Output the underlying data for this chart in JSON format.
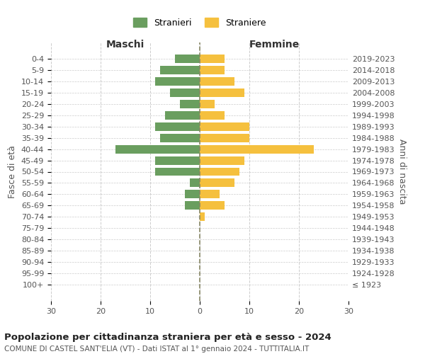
{
  "age_groups": [
    "100+",
    "95-99",
    "90-94",
    "85-89",
    "80-84",
    "75-79",
    "70-74",
    "65-69",
    "60-64",
    "55-59",
    "50-54",
    "45-49",
    "40-44",
    "35-39",
    "30-34",
    "25-29",
    "20-24",
    "15-19",
    "10-14",
    "5-9",
    "0-4"
  ],
  "birth_years": [
    "≤ 1923",
    "1924-1928",
    "1929-1933",
    "1934-1938",
    "1939-1943",
    "1944-1948",
    "1949-1953",
    "1954-1958",
    "1959-1963",
    "1964-1968",
    "1969-1973",
    "1974-1978",
    "1979-1983",
    "1984-1988",
    "1989-1993",
    "1994-1998",
    "1999-2003",
    "2004-2008",
    "2009-2013",
    "2014-2018",
    "2019-2023"
  ],
  "males": [
    0,
    0,
    0,
    0,
    0,
    0,
    0,
    3,
    3,
    2,
    9,
    9,
    17,
    8,
    9,
    7,
    4,
    6,
    9,
    8,
    5
  ],
  "females": [
    0,
    0,
    0,
    0,
    0,
    0,
    1,
    5,
    4,
    7,
    8,
    9,
    23,
    10,
    10,
    5,
    3,
    9,
    7,
    5,
    5
  ],
  "male_color": "#6a9e5f",
  "female_color": "#f5c03e",
  "male_label": "Stranieri",
  "female_label": "Straniere",
  "title": "Popolazione per cittadinanza straniera per età e sesso - 2024",
  "subtitle": "COMUNE DI CASTEL SANT'ELIA (VT) - Dati ISTAT al 1° gennaio 2024 - TUTTITALIA.IT",
  "xlabel_left": "Maschi",
  "xlabel_right": "Femmine",
  "ylabel_left": "Fasce di età",
  "ylabel_right": "Anni di nascita",
  "xlim": 30,
  "background_color": "#ffffff",
  "grid_color": "#cccccc",
  "center_line_color": "#888866"
}
